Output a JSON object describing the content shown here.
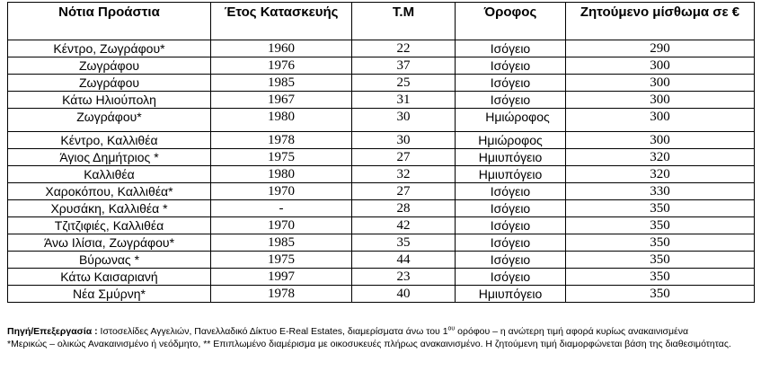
{
  "table": {
    "headers": {
      "area": "Νότια Προάστια",
      "year": "Έτος Κατασκευής",
      "sqm": "Τ.Μ",
      "floor": "Όροφος",
      "price": "Ζητούμενο μίσθωμα σε €"
    },
    "rows": [
      {
        "area": "Κέντρο, Ζωγράφου*",
        "year": "1960",
        "sqm": "22",
        "floor": "Ισόγειο",
        "price": "290"
      },
      {
        "area": "Ζωγράφου",
        "year": "1976",
        "sqm": "37",
        "floor": "Ισόγειο",
        "price": "300"
      },
      {
        "area": "Ζωγράφου",
        "year": "1985",
        "sqm": "25",
        "floor": "Ισόγειο",
        "price": "300"
      },
      {
        "area": "Κάτω Ηλιούπολη",
        "year": "1967",
        "sqm": "31",
        "floor": "Ισόγειο",
        "price": "300"
      },
      {
        "area": "Ζωγράφου*",
        "year": "1980",
        "sqm": "30",
        "floor": "Ημιώροφος",
        "price": "300"
      },
      {
        "area": "Κέντρο, Καλλιθέα",
        "year": "1978",
        "sqm": "30",
        "floor": "Ημιώροφος",
        "price": "300"
      },
      {
        "area": "Άγιος Δημήτριος *",
        "year": "1975",
        "sqm": "27",
        "floor": "Ημιυπόγειο",
        "price": "320"
      },
      {
        "area": "Καλλιθέα",
        "year": "1980",
        "sqm": "32",
        "floor": "Ημιυπόγειο",
        "price": "320"
      },
      {
        "area": "Χαροκόπου, Καλλιθέα*",
        "year": "1970",
        "sqm": "27",
        "floor": "Ισόγειο",
        "price": "330"
      },
      {
        "area": "Χρυσάκη, Καλλιθέα *",
        "year": "-",
        "sqm": "28",
        "floor": "Ισόγειο",
        "price": "350"
      },
      {
        "area": "Τζιτζιφιές, Καλλιθέα",
        "year": "1970",
        "sqm": "42",
        "floor": "Ισόγειο",
        "price": "350"
      },
      {
        "area": "Άνω Ιλίσια, Ζωγράφου*",
        "year": "1985",
        "sqm": "35",
        "floor": "Ισόγειο",
        "price": "350"
      },
      {
        "area": "Βύρωνας *",
        "year": "1975",
        "sqm": "44",
        "floor": "Ισόγειο",
        "price": "350"
      },
      {
        "area": "Κάτω Καισαριανή",
        "year": "1997",
        "sqm": "23",
        "floor": "Ισόγειο",
        "price": "350"
      },
      {
        "area": "Νέα Σμύρνη*",
        "year": "1978",
        "sqm": "40",
        "floor": "Ημιυπόγειο",
        "price": "350"
      }
    ]
  },
  "notes": {
    "source_label": "Πηγή/Επεξεργασία :",
    "source_text_a": " Ιστοσελίδες Αγγελιών, Πανελλαδικό Δίκτυο E-Real Estates, διαμερίσματα άνω του 1",
    "source_sup": "ου",
    "source_text_b": " ορόφου – η ανώτερη τιμή αφορά κυρίως ανακαινισμένα",
    "footnote": "*Μερικώς – ολικώς  Ανακαινισμένο ή νεόδμητο, ** Επιπλωμένο διαμέρισμα με οικοσυκευές πλήρως ανακαινισμένο. Η ζητούμενη τιμή διαμορφώνεται βάση της διαθεσιμότητας."
  }
}
